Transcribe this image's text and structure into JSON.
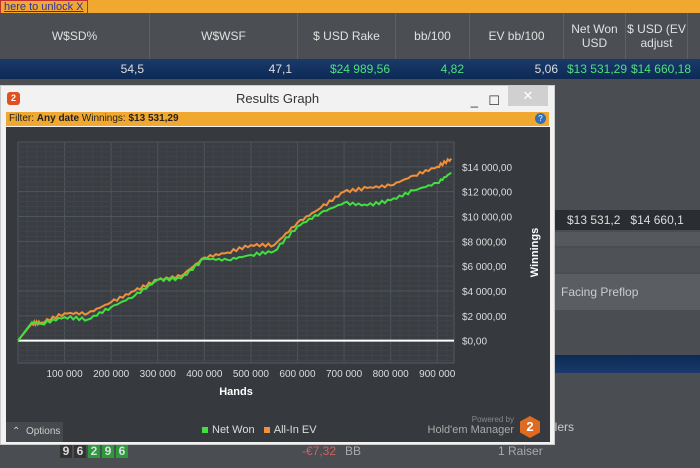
{
  "unlock_text": "here to unlock   X",
  "columns": [
    "W$SD%",
    "W$WSF",
    "$ USD Rake",
    "bb/100",
    "EV bb/100",
    "Net Won USD",
    "$ USD (EV adjust",
    ""
  ],
  "summary_row": [
    "54,5",
    "47,1",
    "$24 989,56",
    "4,82",
    "5,06",
    "$13 531,29",
    "$14 660,18"
  ],
  "bg": {
    "net_won": "$13 531,2",
    "ev": "$14 660,1",
    "facing": "Facing Preflop",
    "callers": "llers",
    "raiser": "1 Raiser",
    "amount": "-€7,32",
    "pos": "BB",
    "digits": [
      "9",
      "6",
      "2",
      "9",
      "6"
    ]
  },
  "window": {
    "title": "Results Graph",
    "logo": "2",
    "minimize": "_",
    "maximize": "☐",
    "close": "✕",
    "filter_label": "Filter:",
    "filter_value": "Any date",
    "winnings_label": "Winnings:",
    "winnings_value": "$13 531,29",
    "help": "?",
    "options": "Options",
    "powered_by": "Powered by",
    "brand": "Hold'em Manager",
    "brand_logo": "2"
  },
  "colors": {
    "net_won": "#3fe03f",
    "all_in_ev": "#f0903a",
    "accent": "#f0a830"
  },
  "chart_data": {
    "type": "line",
    "xlabel": "Hands",
    "ylabel": "Winnings",
    "xlim": [
      0,
      936000
    ],
    "ylim": [
      -1800,
      16000
    ],
    "grid": true,
    "legend": "bottom",
    "xticks": [
      100000,
      200000,
      300000,
      400000,
      500000,
      600000,
      700000,
      800000,
      900000
    ],
    "xtick_labels": [
      "100 000",
      "200 000",
      "300 000",
      "400 000",
      "500 000",
      "600 000",
      "700 000",
      "800 000",
      "900 000"
    ],
    "yticks": [
      0,
      2000,
      4000,
      6000,
      8000,
      10000,
      12000,
      14000
    ],
    "ytick_labels": [
      "$0,00",
      "$2 000,00",
      "$4 000,00",
      "$6 000,00",
      "$8 000,00",
      "$10 000,00",
      "$12 000,00",
      "$14 000,00"
    ],
    "x": [
      0,
      30000,
      50000,
      100000,
      150000,
      200000,
      250000,
      300000,
      350000,
      400000,
      450000,
      500000,
      550000,
      600000,
      650000,
      700000,
      750000,
      800000,
      850000,
      900000,
      930000
    ],
    "series": [
      {
        "name": "Net Won",
        "values": [
          0,
          1480,
          1350,
          1900,
          1700,
          2700,
          3600,
          4900,
          5000,
          6600,
          6500,
          6900,
          7200,
          9200,
          10300,
          11100,
          10900,
          11300,
          12100,
          12700,
          13531
        ]
      },
      {
        "name": "All-In EV",
        "values": [
          0,
          1400,
          1450,
          2200,
          2200,
          3100,
          4000,
          4900,
          5200,
          6700,
          7100,
          7700,
          7700,
          9500,
          10700,
          12000,
          12300,
          12500,
          13300,
          14000,
          14660
        ]
      }
    ]
  }
}
